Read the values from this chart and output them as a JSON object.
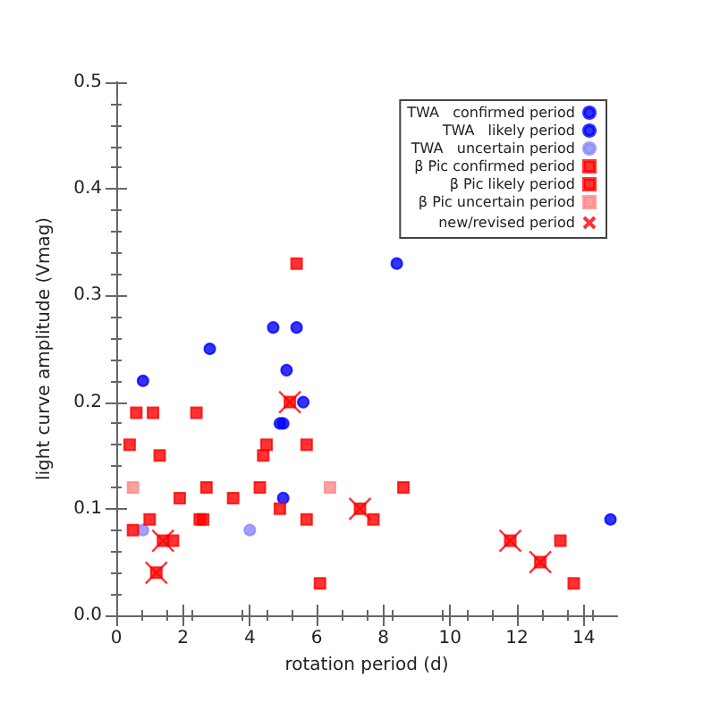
{
  "chart_data": {
    "type": "scatter",
    "xlabel": "rotation period (d)",
    "ylabel": "light curve amplitude (Vmag)",
    "xlim": [
      0,
      15
    ],
    "xticks": [
      0,
      2,
      4,
      6,
      8,
      10,
      12,
      14
    ],
    "ylim": [
      0,
      0.5
    ],
    "yticks": [
      {
        "value": 0,
        "label": "0.0"
      },
      0.1,
      0.2,
      0.3,
      0.4,
      0.5
    ],
    "legend": "top right",
    "series": [
      {
        "name": "TWA   confirmed period",
        "color": "#0000ff",
        "marker": "circle",
        "x": [
          0.8,
          2.8,
          4.7,
          5.4,
          5.1,
          5.6,
          4.9,
          5.0,
          5.0,
          8.4,
          14.8
        ],
        "values": [
          0.22,
          0.25,
          0.27,
          0.27,
          0.23,
          0.2,
          0.18,
          0.18,
          0.11,
          0.33,
          0.09
        ]
      },
      {
        "name": "TWA   likely period",
        "color": "#0000ff",
        "marker": "circle"
      },
      {
        "name": "TWA   uncertain period",
        "color": "#8888ff",
        "marker": "circle",
        "x": [
          0.8,
          4.0
        ],
        "values": [
          0.08,
          0.08
        ]
      },
      {
        "name": "β Pic confirmed period",
        "color": "#ff0000",
        "marker": "square",
        "x": [
          5.4,
          5.2,
          0.6,
          1.1,
          2.4,
          0.4,
          1.3,
          4.5,
          4.4,
          5.7,
          1.9,
          2.7,
          3.5,
          4.3,
          4.9,
          0.5,
          1.0,
          2.5,
          2.6,
          5.7,
          1.4,
          1.7,
          1.2,
          7.7,
          8.6,
          11.8,
          12.7,
          13.3,
          13.7
        ],
        "values": [
          0.33,
          0.2,
          0.19,
          0.19,
          0.19,
          0.16,
          0.15,
          0.16,
          0.15,
          0.16,
          0.11,
          0.12,
          0.11,
          0.12,
          0.1,
          0.08,
          0.09,
          0.09,
          0.09,
          0.09,
          0.07,
          0.07,
          0.04,
          0.09,
          0.12,
          0.07,
          0.05,
          0.07,
          0.03
        ]
      },
      {
        "name": "β Pic likely period",
        "color": "#ff0000",
        "marker": "square",
        "x": [
          6.1,
          7.3
        ],
        "values": [
          0.03,
          0.1
        ]
      },
      {
        "name": "β Pic uncertain period",
        "color": "#ff8888",
        "marker": "square",
        "x": [
          0.5,
          6.4
        ],
        "values": [
          0.12,
          0.12
        ]
      },
      {
        "name": "new/revised period",
        "color": "#ff0000",
        "marker": "cross",
        "x": [
          5.2,
          1.4,
          1.2,
          7.3,
          11.8,
          12.7
        ],
        "values": [
          0.2,
          0.07,
          0.04,
          0.1,
          0.07,
          0.05
        ]
      }
    ]
  }
}
